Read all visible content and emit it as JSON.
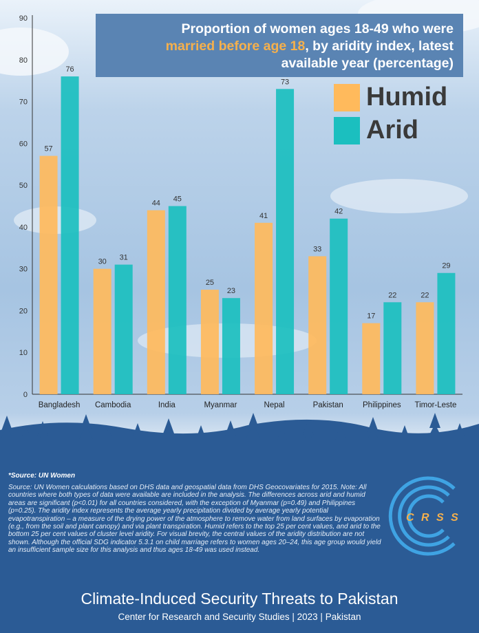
{
  "title": {
    "prefix": "Proportion of women ages 18-49 who were",
    "highlight": "married before age 18",
    "suffix_line2": ", by aridity index, latest",
    "line3": "available year (percentage)"
  },
  "legend": [
    {
      "label": "Humid",
      "color": "#ffba5c"
    },
    {
      "label": "Arid",
      "color": "#1bbfbf"
    }
  ],
  "chart_data": {
    "type": "bar",
    "categories": [
      "Bangladesh",
      "Cambodia",
      "India",
      "Myanmar",
      "Nepal",
      "Pakistan",
      "Philippines",
      "Timor-Leste"
    ],
    "series": [
      {
        "name": "Humid",
        "values": [
          57,
          30,
          44,
          25,
          41,
          33,
          17,
          22
        ]
      },
      {
        "name": "Arid",
        "values": [
          76,
          31,
          45,
          23,
          73,
          42,
          22,
          29
        ]
      }
    ],
    "ylim": [
      0,
      90
    ],
    "yticks": [
      0,
      10,
      20,
      30,
      40,
      50,
      60,
      70,
      80,
      90
    ],
    "legend_position": "top-right",
    "grid": false
  },
  "source": {
    "heading": "*Source: UN Women",
    "body": "Source: UN Women calculations based on DHS data and geospatial data from DHS Geocovariates for 2015. Note: All countries where both types of data were available are included in the analysis. The differences across arid and humid areas are significant (p<0.01) for all countries considered, with the exception of Myanmar (p=0.49) and Philippines (p=0.25). The aridity index represents the average yearly precipitation divided by average yearly potential evapotranspiration – a measure of the drying power of the atmosphere to remove water from land surfaces by evaporation (e.g., from the soil and plant canopy) and via plant transpiration. Humid refers to the top 25 per cent values, and arid to the bottom 25 per cent values of cluster level aridity. For visual brevity, the central values of the aridity distribution are not shown. Although the official SDG indicator 5.3.1 on child marriage refers to women ages 20–24, this age group would yield an insufficient sample size for this analysis and thus ages 18-49 was used instead."
  },
  "logo": {
    "text": "CRSS",
    "color": "#f5b04c",
    "ring_color": "#3fa3e3"
  },
  "footer": {
    "title": "Climate-Induced Security Threats to Pakistan",
    "subtitle": "Center for Research and Security Studies | 2023 | Pakistan"
  }
}
